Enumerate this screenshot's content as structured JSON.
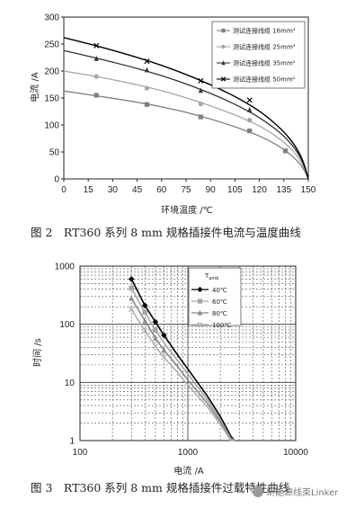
{
  "chart_data": [
    {
      "type": "line",
      "caption": "图 2　RT360 系列 8 mm 规格插接件电流与温度曲线",
      "xlabel": "环境温度 /℃",
      "ylabel": "电流 /A",
      "xlim": [
        0,
        150
      ],
      "ylim": [
        0,
        300
      ],
      "xticks": [
        0,
        15,
        30,
        45,
        60,
        75,
        90,
        105,
        120,
        135,
        150
      ],
      "yticks": [
        0,
        50,
        100,
        150,
        200,
        250,
        300
      ],
      "grid": false,
      "legend_position": "top-right",
      "series": [
        {
          "name": "测试连接线缆 16mm²",
          "color": "#7f7f7f",
          "marker": "square",
          "points": [
            [
              0,
              163
            ],
            [
              20,
              154
            ],
            [
              40,
              145
            ],
            [
              60,
              134
            ],
            [
              80,
              120
            ],
            [
              100,
              102
            ],
            [
              115,
              86
            ],
            [
              125,
              73
            ],
            [
              135,
              55
            ],
            [
              142,
              38
            ],
            [
              147,
              20
            ],
            [
              150,
              0
            ]
          ],
          "marker_points": [
            [
              20,
              155
            ],
            [
              51,
              138
            ],
            [
              84,
              115
            ],
            [
              114,
              89
            ],
            [
              136,
              52
            ]
          ]
        },
        {
          "name": "测试连接线缆 25mm²",
          "color": "#a6a6a6",
          "marker": "circle",
          "points": [
            [
              0,
              200
            ],
            [
              20,
              190
            ],
            [
              40,
              178
            ],
            [
              60,
              164
            ],
            [
              80,
              146
            ],
            [
              100,
              125
            ],
            [
              115,
              106
            ],
            [
              125,
              90
            ],
            [
              135,
              69
            ],
            [
              142,
              48
            ],
            [
              147,
              25
            ],
            [
              150,
              0
            ]
          ],
          "marker_points": [
            [
              20,
              190
            ],
            [
              51,
              168
            ],
            [
              84,
              139
            ],
            [
              114,
              109
            ]
          ]
        },
        {
          "name": "测试连接线缆 35mm²",
          "color": "#333333",
          "marker": "triangle",
          "points": [
            [
              0,
              238
            ],
            [
              20,
              224
            ],
            [
              40,
              209
            ],
            [
              60,
              192
            ],
            [
              80,
              171
            ],
            [
              100,
              146
            ],
            [
              115,
              123
            ],
            [
              125,
              104
            ],
            [
              135,
              80
            ],
            [
              142,
              56
            ],
            [
              147,
              30
            ],
            [
              150,
              0
            ]
          ],
          "marker_points": [
            [
              20,
              223
            ],
            [
              51,
              202
            ],
            [
              84,
              164
            ],
            [
              114,
              128
            ]
          ]
        },
        {
          "name": "测试连接线缆 50mm²",
          "color": "#000000",
          "marker": "x",
          "points": [
            [
              0,
              262
            ],
            [
              20,
              247
            ],
            [
              40,
              230
            ],
            [
              60,
              211
            ],
            [
              80,
              188
            ],
            [
              100,
              161
            ],
            [
              115,
              136
            ],
            [
              125,
              115
            ],
            [
              135,
              88
            ],
            [
              142,
              62
            ],
            [
              147,
              33
            ],
            [
              150,
              0
            ]
          ],
          "marker_points": [
            [
              20,
              247
            ],
            [
              51,
              218
            ],
            [
              84,
              182
            ],
            [
              114,
              146
            ]
          ]
        }
      ]
    },
    {
      "type": "line",
      "caption": "图 3　RT360 系列 8 mm 规格插接件过载特性曲线",
      "xlabel": "电流 /A",
      "ylabel": "时间 /s",
      "xscale": "log",
      "yscale": "log",
      "xlim": [
        100,
        10000
      ],
      "ylim": [
        1,
        1000
      ],
      "xticks": [
        100,
        1000,
        10000
      ],
      "yticks": [
        1,
        10,
        100,
        1000
      ],
      "xtick_labels": [
        "100",
        "1000",
        "10000"
      ],
      "ytick_labels": [
        "1",
        "10",
        "100",
        "1000"
      ],
      "grid": true,
      "legend_title": "T",
      "legend_title_sub": "amb",
      "legend_position": "top-right",
      "series": [
        {
          "name": "40℃",
          "color": "#000000",
          "marker": "diamond",
          "points": [
            [
              300,
              600
            ],
            [
              400,
              210
            ],
            [
              500,
              110
            ],
            [
              600,
              65
            ],
            [
              800,
              30
            ],
            [
              1000,
              17
            ],
            [
              1500,
              6
            ],
            [
              2000,
              2.6
            ],
            [
              2500,
              1.2
            ],
            [
              2700,
              1
            ]
          ],
          "marker_points": [
            [
              300,
              600
            ],
            [
              400,
              210
            ],
            [
              500,
              110
            ],
            [
              600,
              65
            ]
          ]
        },
        {
          "name": "60℃",
          "color": "#a6a6a6",
          "marker": "square",
          "points": [
            [
              300,
              420
            ],
            [
              400,
              160
            ],
            [
              500,
              80
            ],
            [
              600,
              48
            ],
            [
              800,
              24
            ],
            [
              1000,
              14
            ],
            [
              1500,
              5.2
            ],
            [
              2000,
              2.3
            ],
            [
              2500,
              1.1
            ],
            [
              2700,
              1
            ]
          ],
          "marker_points": [
            [
              300,
              420
            ],
            [
              400,
              160
            ],
            [
              500,
              80
            ]
          ]
        },
        {
          "name": "80℃",
          "color": "#888888",
          "marker": "triangle",
          "points": [
            [
              300,
              280
            ],
            [
              400,
              115
            ],
            [
              500,
              58
            ],
            [
              600,
              36
            ],
            [
              800,
              19
            ],
            [
              1000,
              11
            ],
            [
              1500,
              4.5
            ],
            [
              2000,
              2.1
            ],
            [
              2500,
              1.05
            ],
            [
              2700,
              1
            ]
          ],
          "marker_points": [
            [
              300,
              280
            ],
            [
              400,
              115
            ],
            [
              500,
              58
            ],
            [
              600,
              36
            ]
          ]
        },
        {
          "name": "100℃",
          "color": "#b0b0b0",
          "marker": "x",
          "points": [
            [
              300,
              180
            ],
            [
              400,
              78
            ],
            [
              500,
              42
            ],
            [
              600,
              27
            ],
            [
              800,
              15
            ],
            [
              1000,
              9
            ],
            [
              1500,
              3.9
            ],
            [
              2000,
              1.9
            ],
            [
              2500,
              1.0
            ],
            [
              2700,
              1
            ]
          ],
          "marker_points": [
            [
              300,
              180
            ],
            [
              400,
              78
            ],
            [
              500,
              42
            ],
            [
              600,
              27
            ]
          ]
        }
      ]
    }
  ],
  "watermark": {
    "text": "新能源线束Linker"
  }
}
